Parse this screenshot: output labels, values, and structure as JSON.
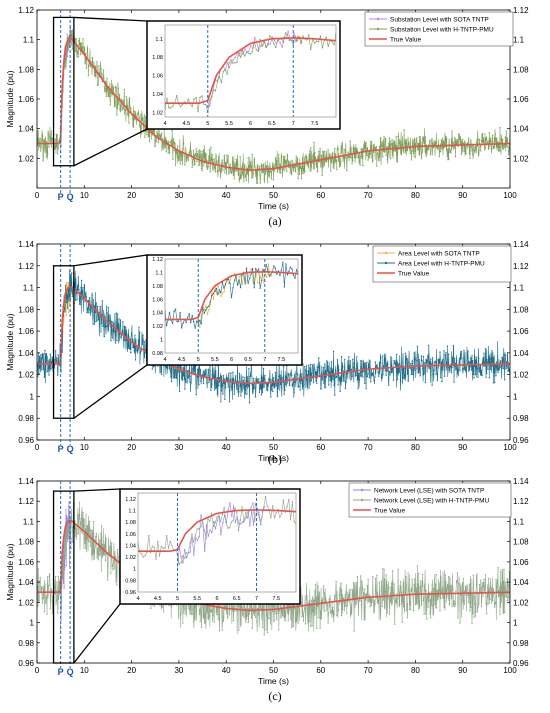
{
  "chart_data": [
    {
      "type": "line",
      "caption": "(a)",
      "xlabel": "Time (s)",
      "ylabel": "Magnitude (pu)",
      "xlim": [
        0,
        100
      ],
      "ylim": [
        1.0,
        1.12
      ],
      "xticks": [
        0,
        10,
        20,
        30,
        40,
        50,
        60,
        70,
        80,
        90,
        100
      ],
      "yticks": [
        1.02,
        1.04,
        1.06,
        1.08,
        1.1,
        1.12
      ],
      "ytick_labels": [
        "1.02",
        "1.04",
        "1.06",
        "1.08",
        "1.1",
        "1.12"
      ],
      "right_axis": true,
      "markers": [
        {
          "label": "P",
          "x": 5
        },
        {
          "label": "Q",
          "x": 7
        }
      ],
      "legend": "top-right",
      "series": [
        {
          "name": "Substation Level with SOTA TNTP",
          "color": "#c87ddd",
          "noise": 0.006,
          "x_range": [
            5,
            7.2
          ]
        },
        {
          "name": "Substation Level with H-TNTP-PMU",
          "color": "#7ba05b",
          "noise": 0.008,
          "x_range": [
            0,
            100
          ]
        },
        {
          "name": "True Value",
          "color": "#e8524a",
          "noise": 0,
          "x_range": [
            0,
            100
          ]
        }
      ],
      "true_value": {
        "x": [
          0,
          4.8,
          5,
          5.2,
          5.5,
          6,
          6.5,
          7,
          7.5,
          8,
          10,
          15,
          20,
          25,
          30,
          35,
          40,
          45,
          50,
          60,
          70,
          80,
          90,
          100
        ],
        "y": [
          1.03,
          1.03,
          1.033,
          1.06,
          1.08,
          1.095,
          1.1,
          1.101,
          1.1,
          1.098,
          1.09,
          1.068,
          1.05,
          1.035,
          1.025,
          1.018,
          1.014,
          1.012,
          1.013,
          1.019,
          1.025,
          1.028,
          1.029,
          1.03
        ]
      },
      "inset": {
        "xlim": [
          4,
          8
        ],
        "ylim": [
          1.015,
          1.115
        ],
        "xticks": [
          4,
          4.5,
          5,
          5.5,
          6,
          6.5,
          7,
          7.5
        ],
        "yticks": [
          1.02,
          1.04,
          1.06,
          1.08,
          1.1
        ],
        "ytick_labels": [
          "1.02",
          "1.04",
          "1.06",
          "1.08",
          "1.1"
        ],
        "vlines": [
          5,
          7
        ]
      }
    },
    {
      "type": "line",
      "caption": "(b)",
      "xlabel": "Time (s)",
      "ylabel": "Magnitude (pu)",
      "xlim": [
        0,
        100
      ],
      "ylim": [
        0.96,
        1.14
      ],
      "xticks": [
        0,
        10,
        20,
        30,
        40,
        50,
        60,
        70,
        80,
        90,
        100
      ],
      "yticks": [
        0.96,
        0.98,
        1.0,
        1.02,
        1.04,
        1.06,
        1.08,
        1.1,
        1.12,
        1.14
      ],
      "ytick_labels": [
        "0.96",
        "0.98",
        "1",
        "1.02",
        "1.04",
        "1.06",
        "1.08",
        "1.1",
        "1.12",
        "1.14"
      ],
      "right_axis": true,
      "markers": [
        {
          "label": "P",
          "x": 5
        },
        {
          "label": "Q",
          "x": 7
        }
      ],
      "legend": "top-right",
      "series": [
        {
          "name": "Area Level with SOTA TNTP",
          "color": "#f0b43a",
          "noise": 0.012,
          "x_range": [
            5,
            7.2
          ]
        },
        {
          "name": "Area Level with H-TNTP-PMU",
          "color": "#1f6f8b",
          "noise": 0.014,
          "x_range": [
            0,
            100
          ]
        },
        {
          "name": "True Value",
          "color": "#e8524a",
          "noise": 0,
          "x_range": [
            0,
            100
          ]
        }
      ],
      "true_value": {
        "x": [
          0,
          4.8,
          5,
          5.2,
          5.5,
          6,
          6.5,
          7,
          7.5,
          8,
          10,
          15,
          20,
          25,
          30,
          35,
          40,
          45,
          50,
          60,
          70,
          80,
          90,
          100
        ],
        "y": [
          1.03,
          1.03,
          1.033,
          1.06,
          1.08,
          1.095,
          1.1,
          1.101,
          1.1,
          1.098,
          1.09,
          1.068,
          1.05,
          1.035,
          1.025,
          1.018,
          1.014,
          1.012,
          1.013,
          1.019,
          1.025,
          1.028,
          1.029,
          1.03
        ]
      },
      "inset": {
        "xlim": [
          4,
          8
        ],
        "ylim": [
          0.98,
          1.12
        ],
        "xticks": [
          4,
          4.5,
          5,
          5.5,
          6,
          6.5,
          7,
          7.5
        ],
        "yticks": [
          0.98,
          1.0,
          1.02,
          1.04,
          1.06,
          1.08,
          1.1,
          1.12
        ],
        "ytick_labels": [
          "0.98",
          "1",
          "1.02",
          "1.04",
          "1.06",
          "1.08",
          "1.1",
          "1.12"
        ],
        "vlines": [
          5,
          7
        ]
      }
    },
    {
      "type": "line",
      "caption": "(c)",
      "xlabel": "Time (s)",
      "ylabel": "Magnitude (pu)",
      "xlim": [
        0,
        100
      ],
      "ylim": [
        0.96,
        1.14
      ],
      "xticks": [
        0,
        10,
        20,
        30,
        40,
        50,
        60,
        70,
        80,
        90,
        100
      ],
      "yticks": [
        0.96,
        0.98,
        1.0,
        1.02,
        1.04,
        1.06,
        1.08,
        1.1,
        1.12,
        1.14
      ],
      "ytick_labels": [
        "0.96",
        "0.98",
        "1",
        "1.02",
        "1.04",
        "1.06",
        "1.08",
        "1.1",
        "1.12",
        "1.14"
      ],
      "right_axis": true,
      "markers": [
        {
          "label": "P",
          "x": 5
        },
        {
          "label": "Q",
          "x": 7
        }
      ],
      "legend": "top-right",
      "series": [
        {
          "name": "Network Level (LSE) with SOTA TNTP",
          "color": "#9b7fe6",
          "noise": 0.025,
          "x_range": [
            5,
            7.2
          ]
        },
        {
          "name": "Network Level (LSE) with H-TNTP-PMU",
          "color": "#8fa88a",
          "noise": 0.02,
          "x_range": [
            0,
            100
          ]
        },
        {
          "name": "True Value",
          "color": "#e8524a",
          "noise": 0,
          "x_range": [
            0,
            100
          ]
        }
      ],
      "true_value": {
        "x": [
          0,
          4.8,
          5,
          5.2,
          5.5,
          6,
          6.5,
          7,
          7.5,
          8,
          10,
          15,
          20,
          25,
          30,
          35,
          40,
          45,
          50,
          60,
          70,
          80,
          90,
          100
        ],
        "y": [
          1.03,
          1.03,
          1.033,
          1.06,
          1.08,
          1.095,
          1.1,
          1.101,
          1.1,
          1.098,
          1.09,
          1.068,
          1.05,
          1.035,
          1.025,
          1.018,
          1.014,
          1.012,
          1.013,
          1.019,
          1.025,
          1.028,
          1.029,
          1.03
        ]
      },
      "inset": {
        "xlim": [
          4,
          8
        ],
        "ylim": [
          0.96,
          1.13
        ],
        "xticks": [
          4,
          4.5,
          5,
          5.5,
          6,
          6.5,
          7,
          7.5
        ],
        "yticks": [
          0.96,
          0.98,
          1.0,
          1.02,
          1.04,
          1.06,
          1.08,
          1.1,
          1.12
        ],
        "ytick_labels": [
          "0.96",
          "0.98",
          "1",
          "1.02",
          "1.04",
          "1.06",
          "1.08",
          "1.1",
          "1.12"
        ],
        "vlines": [
          5,
          7
        ]
      }
    }
  ]
}
